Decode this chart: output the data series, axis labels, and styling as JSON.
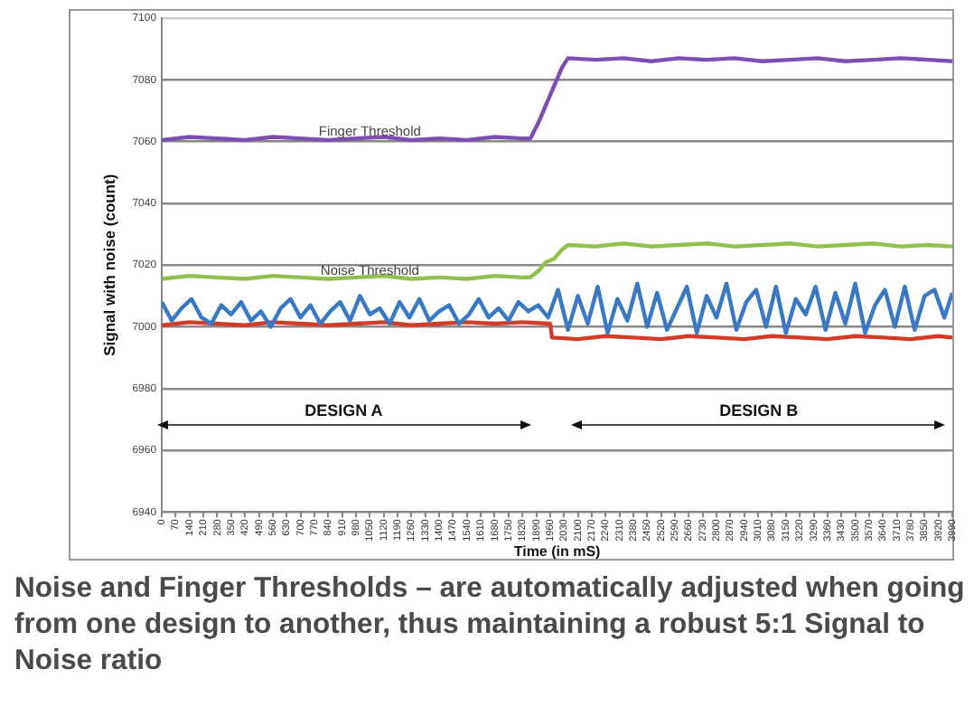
{
  "chart_data": {
    "type": "line",
    "xlabel": "Time (in mS)",
    "ylabel": "Signal with noise (count)",
    "xlim": [
      0,
      3990
    ],
    "ylim": [
      6940,
      7100
    ],
    "xticks": [
      0,
      70,
      140,
      210,
      280,
      350,
      420,
      490,
      560,
      630,
      700,
      770,
      840,
      910,
      980,
      1050,
      1120,
      1190,
      1260,
      1330,
      1400,
      1470,
      1540,
      1610,
      1680,
      1750,
      1820,
      1890,
      1960,
      2030,
      2100,
      2170,
      2240,
      2310,
      2380,
      2450,
      2520,
      2590,
      2660,
      2730,
      2800,
      2870,
      2940,
      3010,
      3080,
      3150,
      3220,
      3290,
      3360,
      3430,
      3500,
      3570,
      3640,
      3710,
      3780,
      3850,
      3920,
      3990
    ],
    "yticks": [
      6940,
      6960,
      6980,
      7000,
      7020,
      7040,
      7060,
      7080,
      7100
    ],
    "grid": "y",
    "legend": false,
    "marker": "none",
    "line_style": "solid",
    "series": [
      {
        "color": "#7b4fb0",
        "x": [
          0,
          140,
          280,
          420,
          560,
          700,
          840,
          980,
          1120,
          1260,
          1400,
          1540,
          1680,
          1820,
          1860,
          1900,
          1940,
          1980,
          2020,
          2050,
          2190,
          2330,
          2470,
          2610,
          2750,
          2890,
          3030,
          3170,
          3310,
          3450,
          3590,
          3730,
          3870,
          3990
        ],
        "values": [
          7060.5,
          7061.5,
          7061,
          7060.5,
          7061.5,
          7061,
          7060.5,
          7061,
          7061.5,
          7060.5,
          7061,
          7060.5,
          7061.5,
          7061,
          7061,
          7066,
          7072,
          7078,
          7084,
          7087,
          7086.5,
          7087,
          7086,
          7087,
          7086.5,
          7087,
          7086,
          7086.5,
          7087,
          7086,
          7086.5,
          7087,
          7086.5,
          7086
        ]
      },
      {
        "color": "#92c050",
        "x": [
          0,
          140,
          280,
          420,
          560,
          700,
          840,
          980,
          1120,
          1260,
          1400,
          1540,
          1680,
          1820,
          1860,
          1900,
          1940,
          1980,
          2020,
          2050,
          2190,
          2330,
          2470,
          2610,
          2750,
          2890,
          3030,
          3170,
          3310,
          3450,
          3590,
          3730,
          3870,
          3990
        ],
        "values": [
          7015.5,
          7016.5,
          7016,
          7015.5,
          7016.5,
          7016,
          7015.5,
          7016,
          7016.5,
          7015.5,
          7016,
          7015.5,
          7016.5,
          7016,
          7016,
          7018,
          7021,
          7022,
          7025,
          7026.5,
          7026,
          7027,
          7026,
          7026.5,
          7027,
          7026,
          7026.5,
          7027,
          7026,
          7026.5,
          7027,
          7026,
          7026.5,
          7026
        ]
      },
      {
        "color": "#3a78c3",
        "x": [
          0,
          50,
          100,
          150,
          200,
          250,
          300,
          350,
          400,
          450,
          500,
          550,
          600,
          650,
          700,
          750,
          800,
          850,
          900,
          950,
          1000,
          1050,
          1100,
          1150,
          1200,
          1250,
          1300,
          1350,
          1400,
          1450,
          1500,
          1550,
          1600,
          1650,
          1700,
          1750,
          1800,
          1850,
          1900,
          1950,
          2000,
          2050,
          2100,
          2150,
          2200,
          2250,
          2300,
          2350,
          2400,
          2450,
          2500,
          2550,
          2600,
          2650,
          2700,
          2750,
          2800,
          2850,
          2900,
          2950,
          3000,
          3050,
          3100,
          3150,
          3200,
          3250,
          3300,
          3350,
          3400,
          3450,
          3500,
          3550,
          3600,
          3650,
          3700,
          3750,
          3800,
          3850,
          3900,
          3950,
          3990
        ],
        "values": [
          7008,
          7002,
          7006,
          7009,
          7003,
          7001,
          7007,
          7004,
          7008,
          7002,
          7005,
          7000,
          7006,
          7009,
          7003,
          7007,
          7001,
          7005,
          7008,
          7002,
          7010,
          7004,
          7006,
          7001,
          7008,
          7003,
          7009,
          7002,
          7005,
          7007,
          7001,
          7004,
          7009,
          7003,
          7006,
          7002,
          7008,
          7005,
          7007,
          7003,
          7012,
          6999,
          7010,
          7001,
          7013,
          6998,
          7009,
          7002,
          7014,
          7000,
          7011,
          6999,
          7006,
          7013,
          6998,
          7010,
          7003,
          7014,
          6999,
          7008,
          7012,
          7000,
          7013,
          6998,
          7009,
          7004,
          7013,
          6999,
          7011,
          7001,
          7014,
          6998,
          7007,
          7012,
          7000,
          7013,
          6999,
          7010,
          7012,
          7003,
          7011
        ]
      },
      {
        "color": "#d23a2a",
        "x": [
          0,
          140,
          280,
          420,
          560,
          700,
          840,
          980,
          1120,
          1260,
          1400,
          1540,
          1680,
          1820,
          1960,
          1970,
          2100,
          2240,
          2380,
          2520,
          2660,
          2800,
          2940,
          3080,
          3220,
          3360,
          3500,
          3640,
          3780,
          3920,
          3990
        ],
        "values": [
          7000.5,
          7001.5,
          7001,
          7000.5,
          7001.5,
          7001,
          7000.5,
          7001,
          7001.5,
          7000.5,
          7001,
          7001.5,
          7001,
          7001.5,
          7001,
          6996.5,
          6996,
          6997,
          6996.5,
          6996,
          6997,
          6996.5,
          6996,
          6997,
          6996.5,
          6996,
          6997,
          6996.5,
          6996,
          6997,
          6996.5
        ]
      }
    ],
    "annotations": [
      {
        "text": "Finger Threshold",
        "x": 1050,
        "y": 7063
      },
      {
        "text": "Noise Threshold",
        "x": 1050,
        "y": 7018
      },
      "DESIGN A",
      "DESIGN B",
      "Noise and Finger Thresholds – are automatically adjusted when going from one design to another, thus maintaining a robust 5:1 Signal to Noise ratio"
    ]
  }
}
